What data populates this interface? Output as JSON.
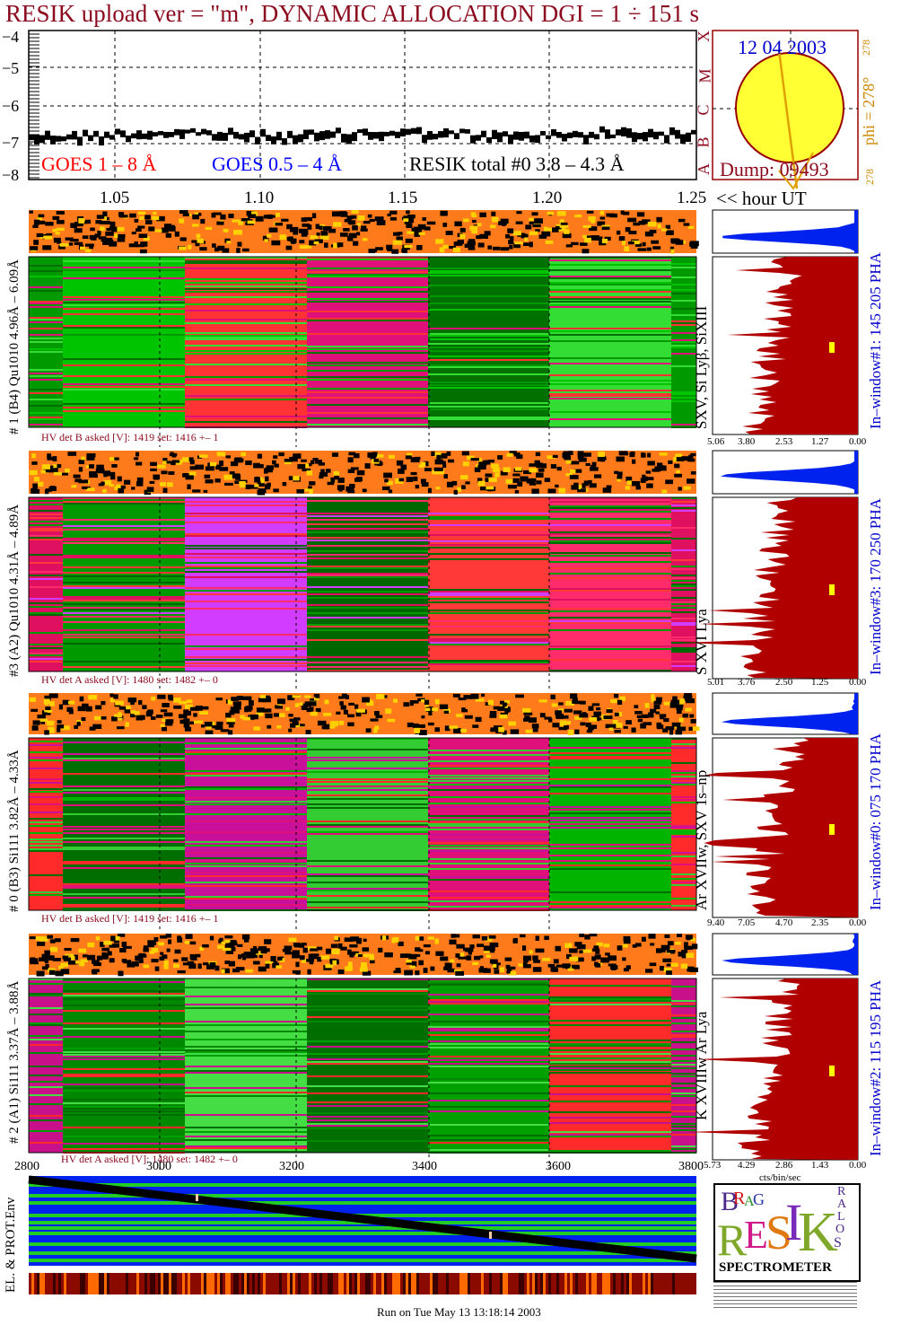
{
  "header": {
    "title": "RESIK upload ver = \"m\", DYNAMIC ALLOCATION  DGI =   1 ÷ 151 s"
  },
  "goes": {
    "y_ticks": [
      "−4",
      "−5",
      "−6",
      "−7",
      "−8"
    ],
    "x_ticks": [
      "1.05",
      "1.10",
      "1.15",
      "1.20",
      "1.25"
    ],
    "x_unit": "<< hour UT",
    "legend_red": "GOES 1 – 8 Å",
    "legend_blue": "GOES 0.5 – 4 Å",
    "legend_black": "RESIK total #0  3.8 – 4.3 Å",
    "colors": {
      "red": "#ff0000",
      "blue": "#0000ff",
      "black": "#000000"
    }
  },
  "sun": {
    "date": "12 04 2003",
    "class_letters": [
      "X",
      "M",
      "C",
      "B",
      "A"
    ],
    "phi_label": "phi = 278°",
    "phi_small": "278",
    "phi_bottom": "278",
    "dump": "Dump: 09493",
    "fill": "#ffff33",
    "border": "#990000"
  },
  "channels": [
    {
      "left_label": "# 1 (B4) Qu1010 4.96Å – 6.09Å",
      "line_label": "SXV, Si Lyβ, SiXIII",
      "window_label": "In–window#1:  145 205 PHA",
      "hv": "HV det B asked [V]:  1419 set:  1416 +–    1",
      "scale_ticks": [
        "5.06",
        "3.80",
        "2.53",
        "1.27",
        "0.00"
      ],
      "pha_peak": 0.62,
      "spectrum_bias": 0.4
    },
    {
      "left_label": "#3 (A2) Qu1010  4.31Å – 4.89Å",
      "line_label": "S XVI Lya",
      "window_label": "In–window#3:  170 250 PHA",
      "hv": "HV det A asked [V]:  1480 set:  1482 +–    0",
      "scale_ticks": [
        "5.01",
        "3.76",
        "2.50",
        "1.25",
        "0.00"
      ],
      "pha_peak": 0.58,
      "spectrum_bias": 0.55
    },
    {
      "left_label": "# 0 (B3) Si111  3.82Å – 4.33Å",
      "line_label": "Ar XVIIw, SXV 1s–np",
      "window_label": "In–window#0:  075 170 PHA",
      "hv": "HV det B asked [V]:  1419 set:  1416 +–    1",
      "scale_ticks": [
        "9.40",
        "7.05",
        "4.70",
        "2.35",
        "0.00"
      ],
      "pha_peak": 0.7,
      "spectrum_bias": 0.35
    },
    {
      "left_label": "# 2 (A1) Si111  3.37Å – 3.88Å",
      "line_label": "K XVIIIw  Ar Lya",
      "window_label": "In–window#2:  115 195 PHA",
      "hv": "HV det A asked [V]:  1480 set:  1482 +–    0",
      "scale_ticks": [
        "5.73",
        "4.29",
        "2.86",
        "1.43",
        "0.00"
      ],
      "pha_peak": 0.66,
      "spectrum_bias": 0.45
    }
  ],
  "spectrum_unit": "cts/bin/sec",
  "env": {
    "x_ticks": [
      "2800",
      "3000",
      "3200",
      "3400",
      "3600",
      "3800"
    ],
    "label": "EL. & PROT.Env"
  },
  "logo": {
    "letters": [
      "B",
      "R",
      "A",
      "G",
      "R",
      "E",
      "S",
      "I",
      "K",
      "S",
      "O",
      "L",
      "A",
      "R"
    ],
    "caption": "SPECTROMETER"
  },
  "footer": "Run on Tue May 13 13:18:14 2003"
}
